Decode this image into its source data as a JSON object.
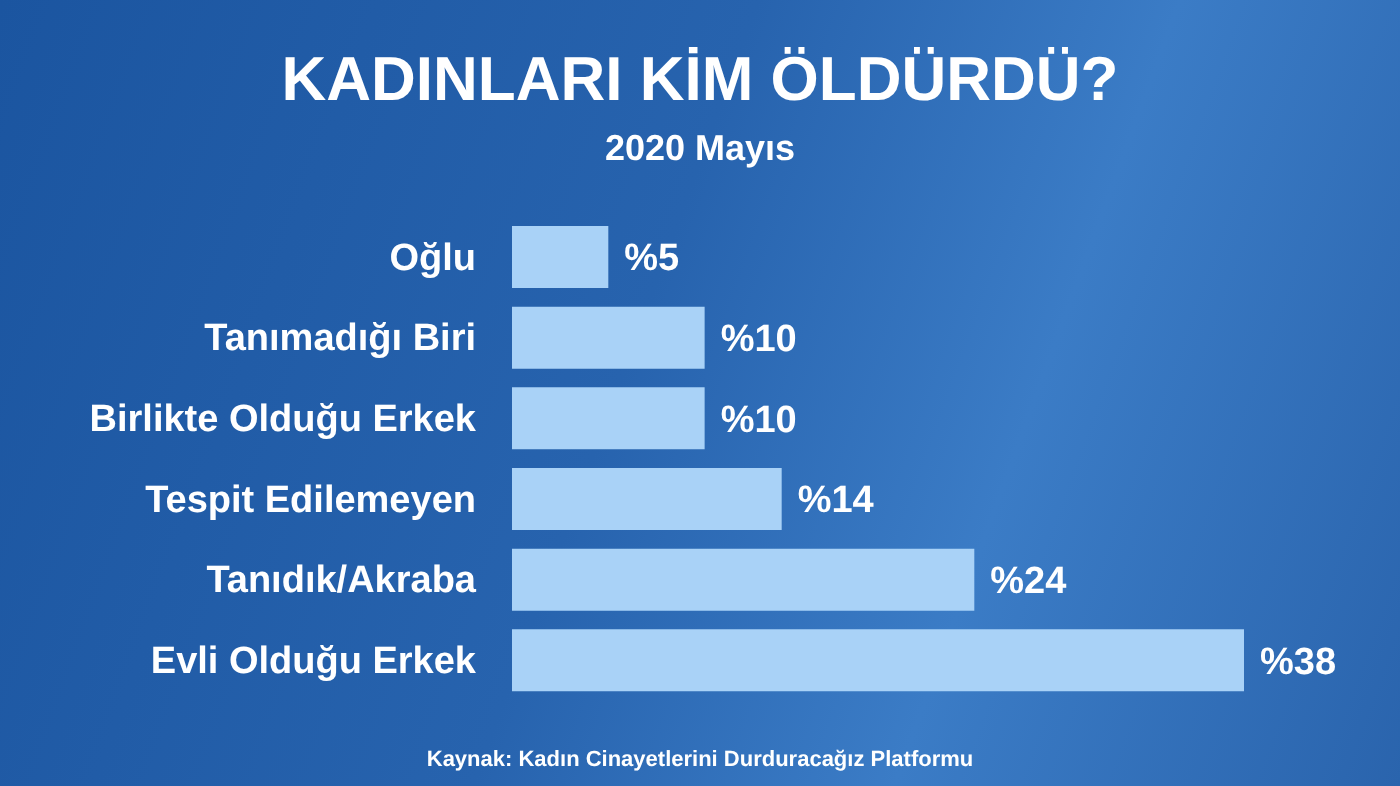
{
  "chart_data": {
    "type": "bar",
    "orientation": "horizontal",
    "title": "KADINLARI KİM ÖLDÜRDÜ?",
    "subtitle": "2020 Mayıs",
    "categories": [
      "Oğlu",
      "Tanımadığı Biri",
      "Birlikte Olduğu Erkek",
      "Tespit Edilemeyen",
      "Tanıdık/Akraba",
      "Evli Olduğu Erkek"
    ],
    "values": [
      5,
      10,
      10,
      14,
      24,
      38
    ],
    "value_labels": [
      "%5",
      "%10",
      "%10",
      "%14",
      "%24",
      "%38"
    ],
    "color": "#a9d2f7",
    "annotations": [
      "Kaynak: Kadın Cinayetlerini Durduracağız Platformu"
    ]
  }
}
